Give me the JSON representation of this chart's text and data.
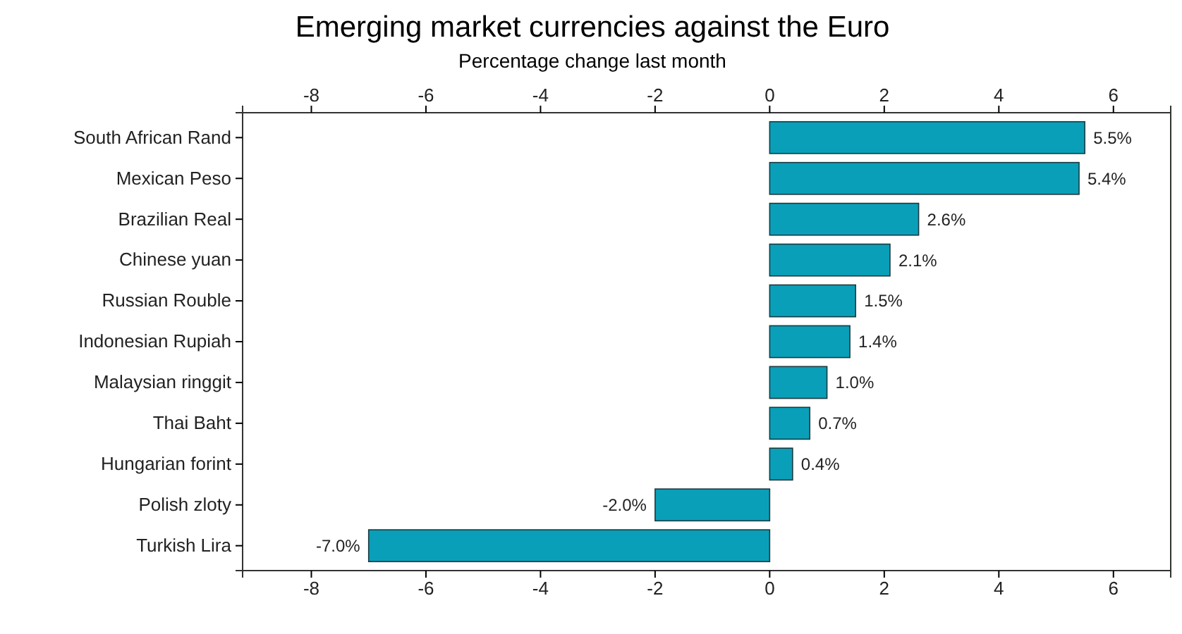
{
  "chart_data": {
    "type": "bar",
    "orientation": "horizontal",
    "title": "Emerging market currencies against the Euro",
    "subtitle": "Percentage change last month",
    "categories": [
      "South African Rand",
      "Mexican Peso",
      "Brazilian Real",
      "Chinese yuan",
      "Russian Rouble",
      "Indonesian Rupiah",
      "Malaysian ringgit",
      "Thai Baht",
      "Hungarian forint",
      "Polish zloty",
      "Turkish Lira"
    ],
    "values": [
      5.5,
      5.4,
      2.6,
      2.1,
      1.5,
      1.4,
      1.0,
      0.7,
      0.4,
      -2.0,
      -7.0
    ],
    "value_labels": [
      "5.5%",
      "5.4%",
      "2.6%",
      "2.1%",
      "1.5%",
      "1.4%",
      "1.0%",
      "0.7%",
      "0.4%",
      "-2.0%",
      "-7.0%"
    ],
    "color": "#0a9fb8",
    "xlim": [
      -9.2,
      7
    ],
    "xticks": [
      -8,
      -6,
      -4,
      -2,
      0,
      2,
      4,
      6
    ],
    "x2lim": [
      -9.2,
      7
    ],
    "x2ticks": [
      -8,
      -6,
      -4,
      -2,
      0,
      2,
      4,
      6
    ]
  }
}
